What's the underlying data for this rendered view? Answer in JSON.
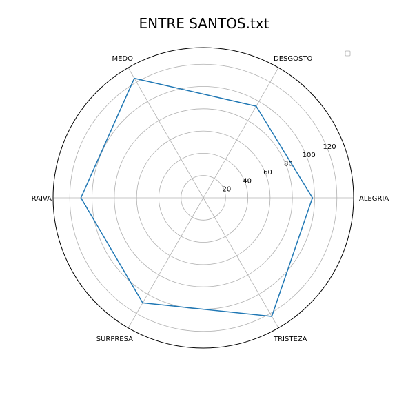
{
  "chart_data": {
    "type": "radar",
    "title": "ENTRE SANTOS.txt",
    "categories": [
      "ALEGRIA",
      "DESGOSTO",
      "MEDO",
      "RAIVA",
      "SURPRESA",
      "TRISTEZA"
    ],
    "series": [
      {
        "values": [
          98,
          95,
          124,
          110,
          109,
          123
        ],
        "color": "#1f77b4"
      }
    ],
    "rlim": [
      0,
      135
    ],
    "rticks": [
      20,
      40,
      60,
      80,
      100,
      120
    ],
    "grid": true,
    "legend": "top-right"
  }
}
